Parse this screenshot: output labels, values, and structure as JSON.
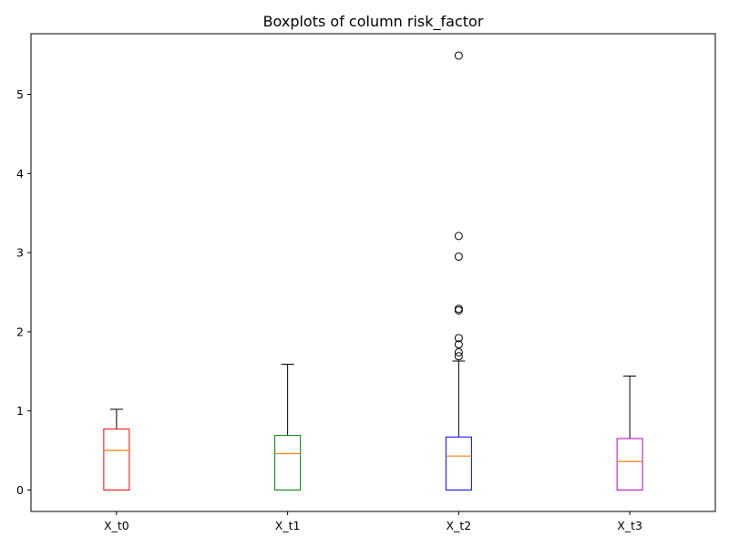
{
  "chart_data": {
    "type": "boxplot",
    "title": "Boxplots of column risk_factor",
    "xlabel": "",
    "ylabel": "",
    "ylim": [
      -0.28,
      5.8
    ],
    "yticks": [
      0,
      1,
      2,
      3,
      4,
      5
    ],
    "grid": false,
    "median_color": "#ff7f0e",
    "series": [
      {
        "name": "X_t0",
        "color": "#ff0000",
        "q1": 0.0,
        "median": 0.5,
        "q3": 0.77,
        "whisker_low": 0.0,
        "whisker_high": 1.02,
        "outliers": []
      },
      {
        "name": "X_t1",
        "color": "#008000",
        "q1": 0.0,
        "median": 0.46,
        "q3": 0.69,
        "whisker_low": 0.0,
        "whisker_high": 1.59,
        "outliers": []
      },
      {
        "name": "X_t2",
        "color": "#0000ff",
        "q1": 0.0,
        "median": 0.43,
        "q3": 0.67,
        "whisker_low": 0.0,
        "whisker_high": 1.63,
        "outliers": [
          1.69,
          1.74,
          1.84,
          1.92,
          2.27,
          2.29,
          2.95,
          3.21,
          5.49
        ]
      },
      {
        "name": "X_t3",
        "color": "#bf00bf",
        "q1": 0.0,
        "median": 0.36,
        "q3": 0.65,
        "whisker_low": 0.0,
        "whisker_high": 1.44,
        "outliers": []
      }
    ]
  }
}
